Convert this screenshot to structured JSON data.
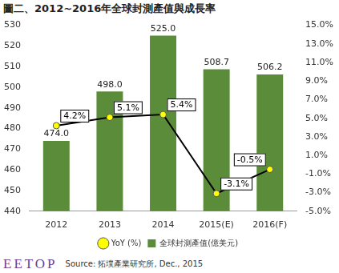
{
  "chart_data": {
    "type": "bar",
    "title": "圖二、2012~2016年全球封測產值與成長率",
    "categories": [
      "2012",
      "2013",
      "2014",
      "2015(E)",
      "2016(F)"
    ],
    "series": [
      {
        "name": "全球封測產值(億美元)",
        "type": "bar",
        "color": "#5b8c3a",
        "values": [
          474.0,
          498.0,
          525.0,
          508.7,
          506.2
        ],
        "value_labels": [
          "474.0",
          "498.0",
          "525.0",
          "508.7",
          "506.2"
        ]
      },
      {
        "name": "YoY (%)",
        "type": "line",
        "axis": "y2",
        "color": "#000000",
        "marker": "circle",
        "values": [
          4.2,
          5.1,
          5.4,
          -3.1,
          -0.5
        ],
        "value_labels": [
          "4.2%",
          "5.1%",
          "5.4%",
          "-3.1%",
          "-0.5%"
        ]
      }
    ],
    "ylim": [
      440,
      530
    ],
    "yticks": [
      440,
      450,
      460,
      470,
      480,
      490,
      500,
      510,
      520,
      530
    ],
    "y2lim": [
      -5,
      15
    ],
    "y2ticks": [
      {
        "value": -5,
        "label": "-5.0%"
      },
      {
        "value": -3,
        "label": "-3.0%"
      },
      {
        "value": -1,
        "label": "-1.0%"
      },
      {
        "value": 1,
        "label": "1.0%"
      },
      {
        "value": 3,
        "label": "3.0%"
      },
      {
        "value": 5,
        "label": "5.0%"
      },
      {
        "value": 7,
        "label": "7.0%"
      },
      {
        "value": 9,
        "label": "9.0%"
      },
      {
        "value": 11,
        "label": "11.0%"
      },
      {
        "value": 13,
        "label": "13.0%"
      },
      {
        "value": 15,
        "label": "15.0%"
      }
    ],
    "grid": false,
    "legend": "bottom",
    "data_labels": true,
    "source": "Source: 拓墣產業研究所, Dec., 2015",
    "watermark": "EETOP"
  }
}
